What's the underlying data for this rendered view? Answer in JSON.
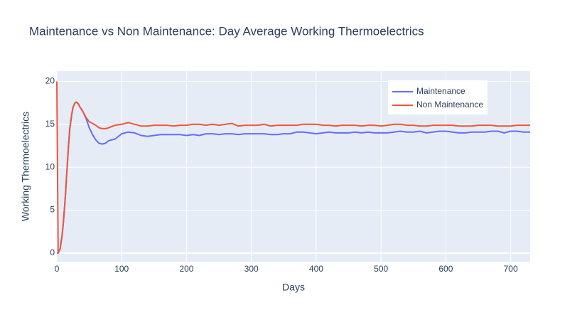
{
  "chart_data": {
    "type": "line",
    "title": "Maintenance vs Non Maintenance: Day Average Working Thermoelectrics",
    "xlabel": "Days",
    "ylabel": "Working Thermoelectrics",
    "x": [
      0,
      2,
      5,
      8,
      10,
      13,
      15,
      18,
      20,
      23,
      25,
      28,
      30,
      33,
      35,
      40,
      45,
      50,
      55,
      60,
      65,
      70,
      75,
      80,
      90,
      100,
      110,
      120,
      130,
      140,
      150,
      160,
      170,
      180,
      190,
      200,
      210,
      220,
      230,
      240,
      250,
      260,
      270,
      280,
      290,
      300,
      310,
      320,
      330,
      340,
      350,
      360,
      370,
      380,
      390,
      400,
      410,
      420,
      430,
      440,
      450,
      460,
      470,
      480,
      490,
      500,
      510,
      520,
      530,
      540,
      550,
      560,
      570,
      580,
      590,
      600,
      610,
      620,
      630,
      640,
      650,
      660,
      670,
      680,
      690,
      700,
      710,
      720,
      730
    ],
    "series": [
      {
        "name": "Maintenance",
        "color": "#636efa",
        "values": [
          0,
          0,
          0.5,
          2,
          3.5,
          6.5,
          9,
          12.5,
          14.5,
          16.2,
          17,
          17.5,
          17.6,
          17.4,
          17.1,
          16.5,
          15.7,
          14.6,
          13.8,
          13.2,
          12.8,
          12.7,
          12.8,
          13.1,
          13.3,
          13.9,
          14.1,
          14,
          13.7,
          13.6,
          13.7,
          13.8,
          13.8,
          13.8,
          13.8,
          13.7,
          13.8,
          13.7,
          13.9,
          13.9,
          13.8,
          13.9,
          13.9,
          13.8,
          13.9,
          13.9,
          13.9,
          13.9,
          13.8,
          13.8,
          13.9,
          13.9,
          14.1,
          14.1,
          14.0,
          13.9,
          14.0,
          14.1,
          14.0,
          14.0,
          14.0,
          14.1,
          14.0,
          14.1,
          14.0,
          14.0,
          14.0,
          14.1,
          14.2,
          14.1,
          14.1,
          14.2,
          14.0,
          14.1,
          14.2,
          14.2,
          14.1,
          14.0,
          14.0,
          14.1,
          14.1,
          14.1,
          14.2,
          14.2,
          14.0,
          14.2,
          14.2,
          14.1,
          14.1
        ]
      },
      {
        "name": "Non Maintenance",
        "color": "#EF553B",
        "values": [
          20,
          0,
          0.5,
          2,
          3.5,
          6.5,
          9,
          12.5,
          14.5,
          16.2,
          17,
          17.5,
          17.6,
          17.4,
          17.1,
          16.5,
          15.8,
          15.3,
          15.1,
          14.9,
          14.6,
          14.5,
          14.5,
          14.6,
          14.9,
          15.0,
          15.2,
          15.0,
          14.8,
          14.8,
          14.9,
          14.9,
          14.9,
          14.8,
          14.9,
          14.9,
          15.0,
          15.0,
          14.9,
          15.0,
          14.9,
          15.0,
          15.1,
          14.8,
          14.9,
          14.9,
          14.9,
          15.0,
          14.8,
          14.9,
          14.9,
          14.9,
          14.9,
          15.0,
          15.0,
          15.0,
          14.9,
          14.9,
          14.8,
          14.9,
          14.9,
          14.9,
          14.8,
          14.9,
          14.9,
          14.8,
          14.9,
          15.0,
          15.0,
          14.9,
          14.9,
          14.8,
          14.8,
          14.9,
          14.9,
          14.9,
          14.9,
          14.8,
          14.8,
          14.8,
          14.9,
          14.9,
          14.9,
          14.8,
          14.8,
          14.8,
          14.9,
          14.9,
          14.9
        ]
      }
    ],
    "xlim": [
      0,
      730
    ],
    "ylim": [
      -1,
      21.2
    ],
    "xticks": [
      0,
      100,
      200,
      300,
      400,
      500,
      600,
      700
    ],
    "yticks": [
      0,
      5,
      10,
      15,
      20
    ],
    "grid": true,
    "legend": "top-right"
  }
}
